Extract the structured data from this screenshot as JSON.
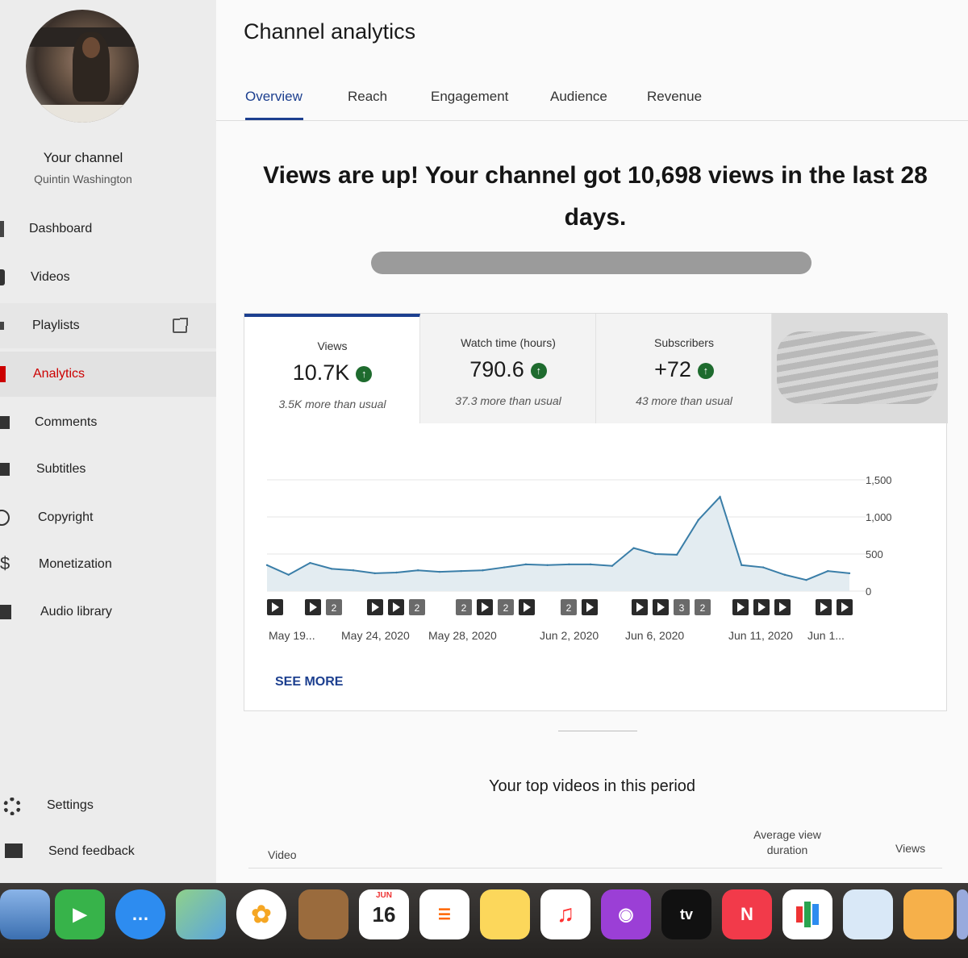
{
  "sidebar": {
    "channel_label": "Your channel",
    "channel_name": "Quintin Washington",
    "items": [
      {
        "label": "Dashboard"
      },
      {
        "label": "Videos"
      },
      {
        "label": "Playlists"
      },
      {
        "label": "Analytics"
      },
      {
        "label": "Comments"
      },
      {
        "label": "Subtitles"
      },
      {
        "label": "Copyright"
      },
      {
        "label": "Monetization"
      },
      {
        "label": "Audio library"
      },
      {
        "label": "Settings"
      },
      {
        "label": "Send feedback"
      }
    ]
  },
  "main": {
    "title": "Channel analytics",
    "tabs": [
      {
        "label": "Overview"
      },
      {
        "label": "Reach"
      },
      {
        "label": "Engagement"
      },
      {
        "label": "Audience"
      },
      {
        "label": "Revenue"
      }
    ],
    "headline": "Views are up! Your channel got 10,698 views in the last 28 days.",
    "metrics": [
      {
        "label": "Views",
        "value": "10.7K",
        "note": "3.5K more than usual"
      },
      {
        "label": "Watch time (hours)",
        "value": "790.6",
        "note": "37.3 more than usual"
      },
      {
        "label": "Subscribers",
        "value": "+72",
        "note": "43 more than usual"
      }
    ],
    "see_more": "SEE MORE",
    "top_videos_title": "Your top videos in this period",
    "table_headers": {
      "video": "Video",
      "avg_view_duration": "Average view duration",
      "views": "Views"
    }
  },
  "chart_data": {
    "type": "area",
    "series": [
      {
        "name": "Views",
        "values": [
          350,
          220,
          380,
          300,
          280,
          240,
          250,
          280,
          260,
          270,
          280,
          320,
          360,
          350,
          360,
          360,
          340,
          580,
          500,
          490,
          960,
          1270,
          350,
          320,
          220,
          150,
          270,
          240
        ]
      }
    ],
    "x_labels": [
      "May 19...",
      "May 24, 2020",
      "May 28, 2020",
      "Jun 2, 2020",
      "Jun 6, 2020",
      "Jun 11, 2020",
      "Jun 1..."
    ],
    "y_ticks": [
      "1,500",
      "1,000",
      "500",
      "0"
    ],
    "ylim": [
      0,
      1500
    ],
    "grid": true,
    "markers": [
      {
        "slot": 0,
        "items": [
          "play"
        ]
      },
      {
        "slot": 1,
        "items": [
          "play",
          "2"
        ]
      },
      {
        "slot": 2,
        "items": [
          "play",
          "play",
          "2"
        ]
      },
      {
        "slot": 3,
        "items": [
          "2",
          "play",
          "2",
          "play"
        ]
      },
      {
        "slot": 4,
        "items": [
          "2",
          "play"
        ]
      },
      {
        "slot": 5,
        "items": [
          "play",
          "play",
          "3",
          "2"
        ]
      },
      {
        "slot": 6,
        "items": [
          "play",
          "play",
          "play"
        ]
      },
      {
        "slot": 7,
        "items": [
          "play",
          "play"
        ]
      }
    ],
    "line_color": "#3a7ea8",
    "fill_color": "#e3ecf1"
  },
  "dock": {
    "calendar_month": "JUN",
    "calendar_day": "16",
    "tv_label": "tv"
  }
}
